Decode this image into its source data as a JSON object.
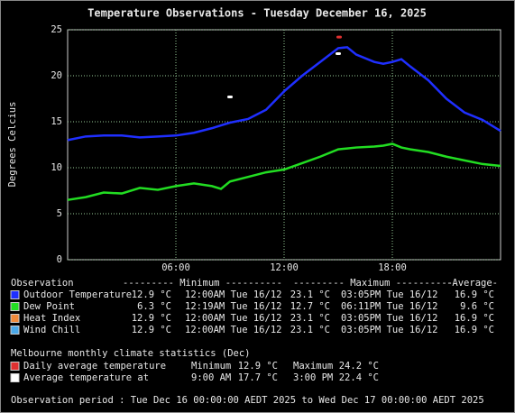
{
  "chart_data": {
    "type": "line",
    "title": "Temperature Observations - Tuesday December 16, 2025",
    "y_label": "Degrees Celcius",
    "x": [
      0,
      1,
      2,
      3,
      4,
      5,
      6,
      7,
      8,
      8.5,
      9,
      10,
      11,
      12,
      13,
      14,
      15,
      15.5,
      16,
      17,
      17.5,
      18,
      18.5,
      19,
      20,
      21,
      22,
      23,
      24
    ],
    "series": [
      {
        "name": "Outdoor Temperature",
        "color": "#1f2fff",
        "values": [
          13.0,
          13.4,
          13.5,
          13.5,
          13.3,
          13.4,
          13.5,
          13.8,
          14.3,
          14.6,
          14.9,
          15.3,
          16.3,
          18.3,
          20.0,
          21.5,
          23.0,
          23.1,
          22.3,
          21.5,
          21.3,
          21.5,
          21.8,
          21.0,
          19.5,
          17.5,
          16.0,
          15.2,
          14.0
        ]
      },
      {
        "name": "Dew Point",
        "color": "#22dd22",
        "values": [
          6.5,
          6.8,
          7.3,
          7.2,
          7.8,
          7.6,
          8.0,
          8.3,
          8.0,
          7.7,
          8.5,
          9.0,
          9.5,
          9.8,
          10.5,
          11.2,
          12.0,
          12.1,
          12.2,
          12.3,
          12.4,
          12.6,
          12.2,
          12.0,
          11.7,
          11.2,
          10.8,
          10.4,
          10.2
        ]
      }
    ],
    "markers": [
      {
        "x": 15.05,
        "value": 24.2,
        "color": "#e03030"
      },
      {
        "x": 9,
        "value": 17.7,
        "color": "#ffffff"
      },
      {
        "x": 15,
        "value": 22.4,
        "color": "#ffffff"
      }
    ],
    "xlim": [
      0,
      24
    ],
    "xticks": [
      {
        "value": 6,
        "label": "06:00"
      },
      {
        "value": 12,
        "label": "12:00"
      },
      {
        "value": 18,
        "label": "18:00"
      }
    ],
    "ylim": [
      0,
      25
    ],
    "yticks": [
      0,
      5,
      10,
      15,
      20,
      25
    ],
    "grid": true
  },
  "stats": {
    "header": [
      "Observation",
      "--------- Minimum ----------",
      "--------- Maximum ----------",
      "-Average-"
    ],
    "rows": [
      {
        "color": "#1f2fff",
        "cells": [
          "Outdoor Temperature",
          "12.9 °C",
          "12:00AM Tue 16/12",
          "23.1 °C",
          "03:05PM Tue 16/12",
          "16.9 °C"
        ]
      },
      {
        "color": "#22dd22",
        "cells": [
          "Dew Point",
          "6.3 °C",
          "12:19AM Tue 16/12",
          "12.7 °C",
          "06:11PM Tue 16/12",
          "9.6 °C"
        ]
      },
      {
        "color": "#f08a3a",
        "cells": [
          "Heat Index",
          "12.9 °C",
          "12:00AM Tue 16/12",
          "23.1 °C",
          "03:05PM Tue 16/12",
          "16.9 °C"
        ]
      },
      {
        "color": "#4aa8e8",
        "cells": [
          "Wind Chill",
          "12.9 °C",
          "12:00AM Tue 16/12",
          "23.1 °C",
          "03:05PM Tue 16/12",
          "16.9 °C"
        ]
      }
    ]
  },
  "climate": {
    "title": "Melbourne monthly climate statistics (Dec)",
    "rows": [
      {
        "color": "#e03030",
        "cells": [
          "Daily average temperature",
          "Minimum",
          "12.9 °C",
          "Maximum",
          "24.2 °C"
        ]
      },
      {
        "color": "#ffffff",
        "cells": [
          "Average temperature at",
          "9:00 AM",
          "17.7 °C",
          "3:00 PM",
          "22.4 °C"
        ]
      }
    ]
  },
  "period": "Observation period : Tue Dec 16 00:00:00 AEDT 2025 to Wed Dec 17 00:00:00 AEDT 2025"
}
